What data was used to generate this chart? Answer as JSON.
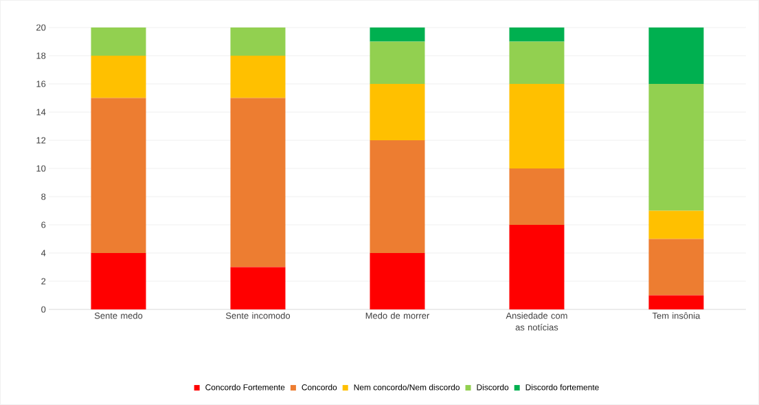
{
  "chart_data": {
    "type": "bar",
    "stacked": true,
    "categories": [
      "Sente medo",
      "Sente incomodo",
      "Medo de morrer",
      "Ansiedade com as notícias",
      "Tem insônia"
    ],
    "series": [
      {
        "name": "Concordo Fortemente",
        "color": "#ff0000",
        "values": [
          4,
          3,
          4,
          6,
          1
        ]
      },
      {
        "name": "Concordo",
        "color": "#ed7d31",
        "values": [
          11,
          12,
          8,
          4,
          4
        ]
      },
      {
        "name": "Nem concordo/Nem discordo",
        "color": "#ffc000",
        "values": [
          3,
          3,
          4,
          6,
          2
        ]
      },
      {
        "name": "Discordo",
        "color": "#92d050",
        "values": [
          2,
          2,
          3,
          3,
          9
        ]
      },
      {
        "name": "Discordo fortemente",
        "color": "#00b050",
        "values": [
          0,
          0,
          1,
          1,
          4
        ]
      }
    ],
    "ylim": [
      0,
      20
    ],
    "yticks": [
      0,
      2,
      4,
      6,
      8,
      10,
      12,
      14,
      16,
      18,
      20
    ],
    "grid": "y",
    "legend": "bottom"
  }
}
